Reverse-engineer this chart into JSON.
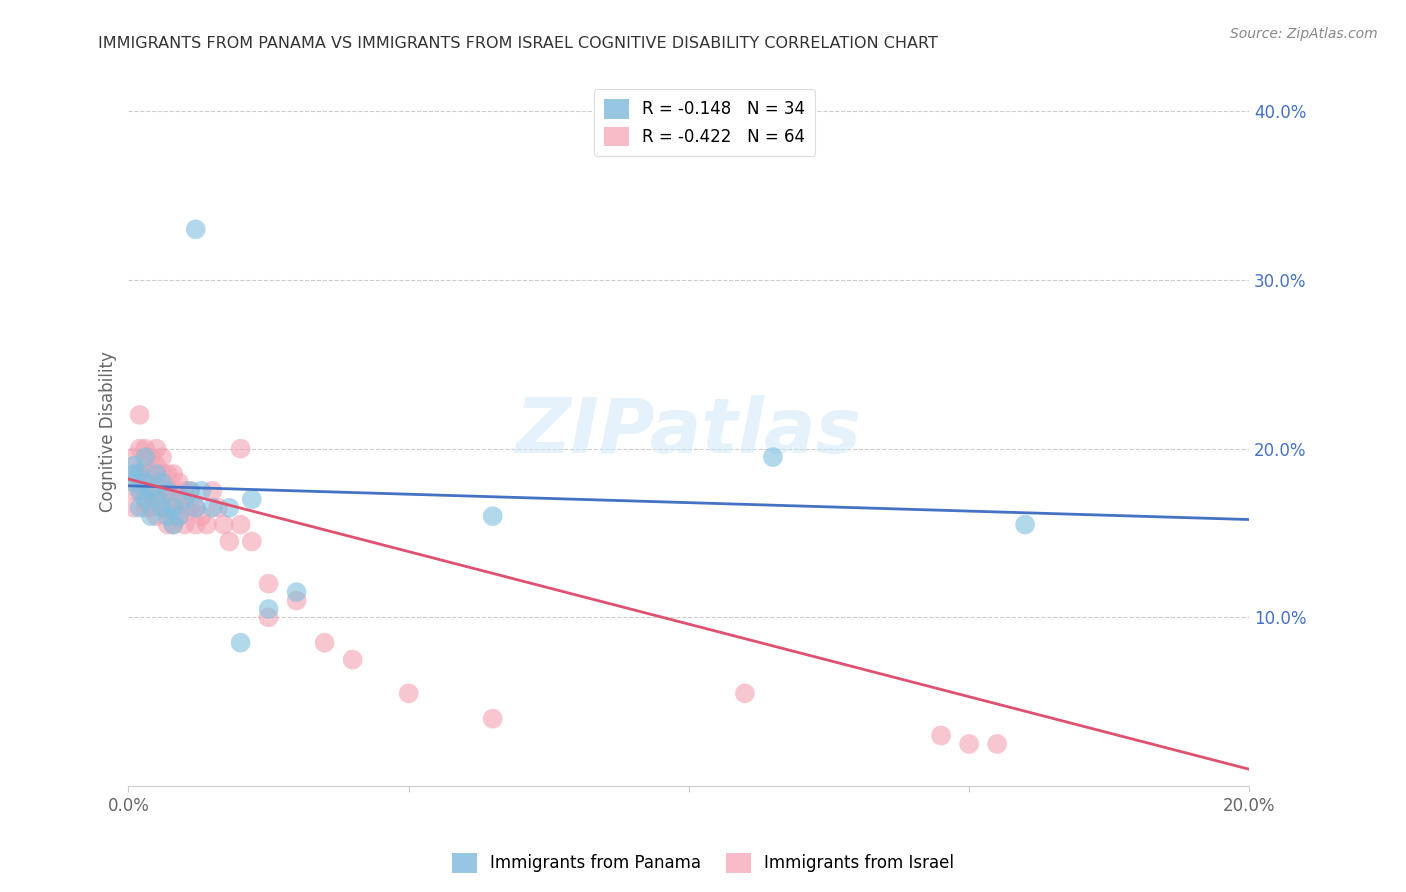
{
  "title": "IMMIGRANTS FROM PANAMA VS IMMIGRANTS FROM ISRAEL COGNITIVE DISABILITY CORRELATION CHART",
  "source": "Source: ZipAtlas.com",
  "ylabel": "Cognitive Disability",
  "watermark": "ZIPatlas",
  "xlim": [
    0.0,
    0.2
  ],
  "ylim": [
    0.0,
    0.42
  ],
  "legend1_label": "R = -0.148   N = 34",
  "legend2_label": "R = -0.422   N = 64",
  "legend1_color": "#6baed6",
  "legend2_color": "#f4a0b0",
  "series1_name": "Immigrants from Panama",
  "series2_name": "Immigrants from Israel",
  "series1_color": "#7fbfdf",
  "series2_color": "#f4a0b0",
  "trendline1_color": "#4472c4",
  "trendline2_color": "#e05070",
  "background_color": "#ffffff",
  "grid_color": "#cccccc",
  "title_color": "#333333",
  "right_axis_color": "#4472c4",
  "panama_x": [
    0.001,
    0.001,
    0.001,
    0.002,
    0.002,
    0.002,
    0.003,
    0.003,
    0.003,
    0.004,
    0.004,
    0.005,
    0.005,
    0.006,
    0.006,
    0.007,
    0.007,
    0.008,
    0.008,
    0.009,
    0.01,
    0.011,
    0.012,
    0.013,
    0.015,
    0.018,
    0.02,
    0.022,
    0.025,
    0.03,
    0.065,
    0.115,
    0.16,
    0.012
  ],
  "panama_y": [
    0.185,
    0.19,
    0.18,
    0.185,
    0.175,
    0.165,
    0.18,
    0.17,
    0.195,
    0.175,
    0.16,
    0.17,
    0.185,
    0.165,
    0.18,
    0.16,
    0.175,
    0.165,
    0.155,
    0.16,
    0.17,
    0.175,
    0.165,
    0.175,
    0.165,
    0.165,
    0.085,
    0.17,
    0.105,
    0.115,
    0.16,
    0.195,
    0.155,
    0.33
  ],
  "israel_x": [
    0.001,
    0.001,
    0.001,
    0.001,
    0.002,
    0.002,
    0.002,
    0.002,
    0.003,
    0.003,
    0.003,
    0.003,
    0.003,
    0.004,
    0.004,
    0.004,
    0.004,
    0.005,
    0.005,
    0.005,
    0.005,
    0.005,
    0.006,
    0.006,
    0.006,
    0.006,
    0.007,
    0.007,
    0.007,
    0.007,
    0.008,
    0.008,
    0.008,
    0.008,
    0.009,
    0.009,
    0.009,
    0.01,
    0.01,
    0.01,
    0.011,
    0.011,
    0.012,
    0.012,
    0.013,
    0.014,
    0.015,
    0.016,
    0.017,
    0.018,
    0.02,
    0.022,
    0.025,
    0.03,
    0.035,
    0.04,
    0.05,
    0.065,
    0.11,
    0.145,
    0.15,
    0.155,
    0.02,
    0.025
  ],
  "israel_y": [
    0.195,
    0.185,
    0.175,
    0.165,
    0.22,
    0.2,
    0.185,
    0.175,
    0.2,
    0.19,
    0.18,
    0.175,
    0.165,
    0.195,
    0.185,
    0.175,
    0.165,
    0.2,
    0.19,
    0.18,
    0.17,
    0.16,
    0.195,
    0.185,
    0.175,
    0.165,
    0.185,
    0.175,
    0.165,
    0.155,
    0.185,
    0.175,
    0.165,
    0.155,
    0.18,
    0.17,
    0.16,
    0.175,
    0.165,
    0.155,
    0.175,
    0.165,
    0.165,
    0.155,
    0.16,
    0.155,
    0.175,
    0.165,
    0.155,
    0.145,
    0.155,
    0.145,
    0.12,
    0.11,
    0.085,
    0.075,
    0.055,
    0.04,
    0.055,
    0.03,
    0.025,
    0.025,
    0.2,
    0.1
  ],
  "panama_trend_x": [
    0.0,
    0.2
  ],
  "panama_trend_y": [
    0.178,
    0.158
  ],
  "israel_trend_x": [
    0.0,
    0.2
  ],
  "israel_trend_y": [
    0.182,
    0.01
  ]
}
